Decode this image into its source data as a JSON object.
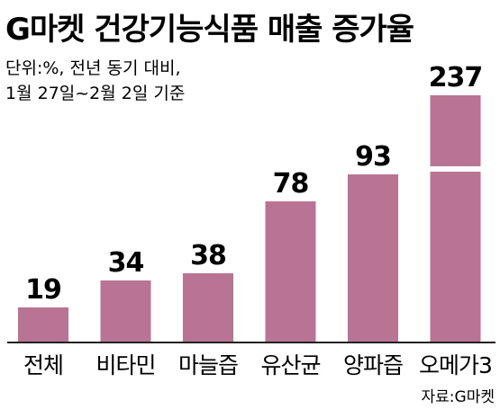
{
  "chart_data": {
    "type": "bar",
    "title": "G마켓 건강기능식품 매출 증가율",
    "subtitle_lines": [
      "단위:%, 전년 동기 대비,",
      "1월 27일~2월 2일 기준"
    ],
    "categories": [
      "전체",
      "비타민",
      "마늘즙",
      "유산균",
      "양파즙",
      "오메가3"
    ],
    "values": [
      19,
      34,
      38,
      78,
      93,
      237
    ],
    "axis_break": true,
    "source": "자료:G마켓",
    "bar_color": "#b97493",
    "grid": false,
    "legend": "none"
  }
}
